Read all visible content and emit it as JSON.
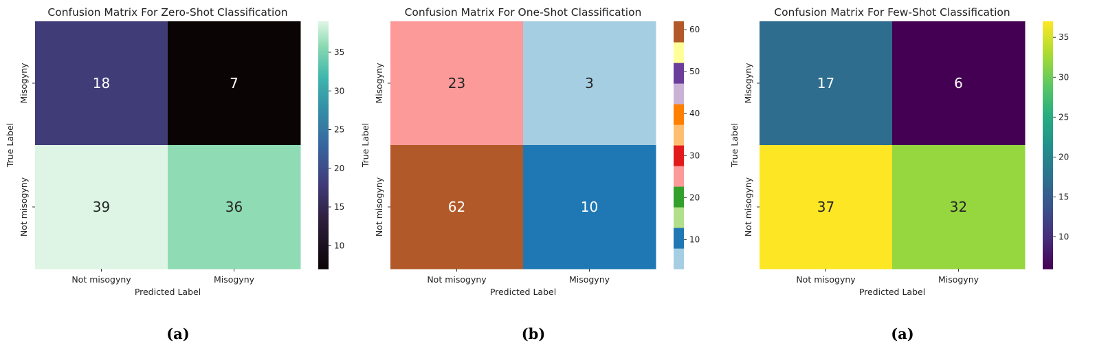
{
  "chart_data": [
    {
      "type": "heatmap",
      "title": "Confusion Matrix For Zero-Shot Classification",
      "xlabel": "Predicted Label",
      "ylabel": "True Label",
      "x_categories": [
        "Not misogyny",
        "Misogyny"
      ],
      "y_categories": [
        "Misogyny",
        "Not misogyny"
      ],
      "values": [
        [
          18,
          7
        ],
        [
          39,
          36
        ]
      ],
      "colormap": "mako",
      "colorbar_range": [
        7,
        39
      ],
      "colorbar_ticks": [
        10,
        15,
        20,
        25,
        30,
        35
      ],
      "panel_label": "(a)"
    },
    {
      "type": "heatmap",
      "title": "Confusion Matrix For One-Shot Classification",
      "xlabel": "Predicted Label",
      "ylabel": "True Label",
      "x_categories": [
        "Not misogyny",
        "Misogyny"
      ],
      "y_categories": [
        "Misogyny",
        "Not misogyny"
      ],
      "values": [
        [
          23,
          3
        ],
        [
          62,
          10
        ]
      ],
      "colormap": "Paired",
      "colorbar_range": [
        3,
        62
      ],
      "colorbar_ticks": [
        10,
        20,
        30,
        40,
        50,
        60
      ],
      "panel_label": "(b)"
    },
    {
      "type": "heatmap",
      "title": "Confusion Matrix For Few-Shot Classification",
      "xlabel": "Predicted Label",
      "ylabel": "True Label",
      "x_categories": [
        "Not misogyny",
        "Misogyny"
      ],
      "y_categories": [
        "Misogyny",
        "Not misogyny"
      ],
      "values": [
        [
          17,
          6
        ],
        [
          37,
          32
        ]
      ],
      "colormap": "viridis",
      "colorbar_range": [
        6,
        37
      ],
      "colorbar_ticks": [
        10,
        15,
        20,
        25,
        30,
        35
      ],
      "panel_label": "(a)"
    }
  ]
}
